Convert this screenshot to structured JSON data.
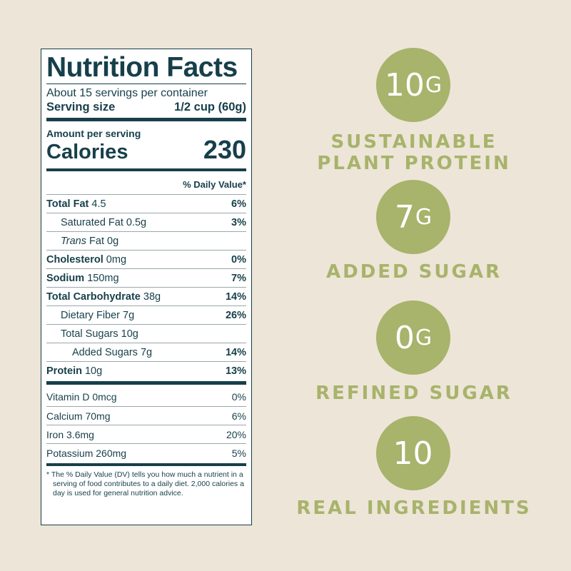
{
  "nutrition": {
    "title": "Nutrition Facts",
    "servings_per_container": "About 15 servings per container",
    "serving_size_label": "Serving size",
    "serving_size_value": "1/2 cup (60g)",
    "amount_per_serving": "Amount per serving",
    "calories_label": "Calories",
    "calories_value": "230",
    "daily_value_header": "% Daily Value*",
    "rows": [
      {
        "name": "Total Fat",
        "amount": "4.5",
        "dv": "6%"
      },
      {
        "name": "Saturated Fat",
        "amount": "0.5g",
        "dv": "3%"
      },
      {
        "name": "Trans",
        "amount": "Fat 0g",
        "dv": ""
      },
      {
        "name": "Cholesterol",
        "amount": "0mg",
        "dv": "0%"
      },
      {
        "name": "Sodium",
        "amount": "150mg",
        "dv": "7%"
      },
      {
        "name": "Total Carbohydrate",
        "amount": "38g",
        "dv": "14%"
      },
      {
        "name": "Dietary Fiber",
        "amount": "7g",
        "dv": "26%"
      },
      {
        "name": "Total Sugars",
        "amount": "10g",
        "dv": ""
      },
      {
        "name": "Added Sugars",
        "amount": "7g",
        "dv": "14%"
      },
      {
        "name": "Protein",
        "amount": "10g",
        "dv": "13%"
      }
    ],
    "vitamins": [
      {
        "name": "Vitamin D 0mcg",
        "dv": "0%"
      },
      {
        "name": "Calcium 70mg",
        "dv": "6%"
      },
      {
        "name": "Iron 3.6mg",
        "dv": "20%"
      },
      {
        "name": "Potassium 260mg",
        "dv": "5%"
      }
    ],
    "footnote": "* The % Daily Value (DV) tells you how much a nutrient in a serving of food contributes to a daily diet. 2,000 calories a day is used for general nutrition advice."
  },
  "highlights": [
    {
      "number": "10",
      "unit": "G",
      "label_line1": "SUSTAINABLE",
      "label_line2": "PLANT PROTEIN"
    },
    {
      "number": "7",
      "unit": "G",
      "label_line1": "ADDED SUGAR",
      "label_line2": ""
    },
    {
      "number": "0",
      "unit": "G",
      "label_line1": "REFINED SUGAR",
      "label_line2": ""
    },
    {
      "number": "10",
      "unit": "",
      "label_line1": "REAL INGREDIENTS",
      "label_line2": ""
    }
  ],
  "colors": {
    "background": "#ede5d8",
    "ink": "#163f4a",
    "accent": "#a8b36b"
  }
}
